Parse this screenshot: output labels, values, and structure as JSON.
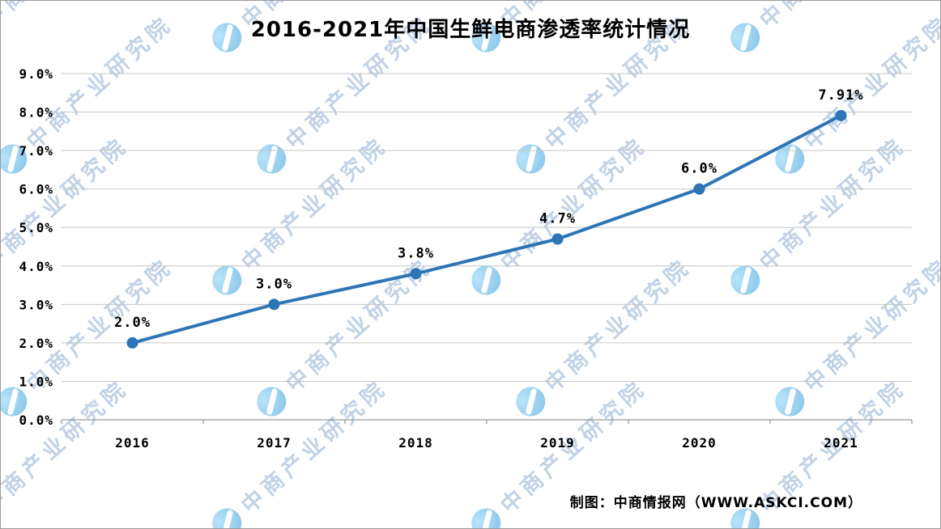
{
  "title": "2016-2021年中国生鲜电商渗透率统计情况",
  "footer": "制图：中商情报网（WWW.ASKCI.COM）",
  "watermark": {
    "text": "中商产业研究院"
  },
  "chart_data": {
    "type": "line",
    "title": "2016-2021年中国生鲜电商渗透率统计情况",
    "categories": [
      "2016",
      "2017",
      "2018",
      "2019",
      "2020",
      "2021"
    ],
    "values": [
      2.0,
      3.0,
      3.8,
      4.7,
      6.0,
      7.91
    ],
    "point_labels": [
      "2.0%",
      "3.0%",
      "3.8%",
      "4.7%",
      "6.0%",
      "7.91%"
    ],
    "xlabel": "",
    "ylabel": "",
    "ylim": [
      0,
      9
    ],
    "ytick_labels": [
      "0.0%",
      "1.0%",
      "2.0%",
      "3.0%",
      "4.0%",
      "5.0%",
      "6.0%",
      "7.0%",
      "8.0%",
      "9.0%"
    ],
    "grid": true,
    "legend": "none",
    "line_color": "#2E75B6",
    "marker": "circle"
  }
}
